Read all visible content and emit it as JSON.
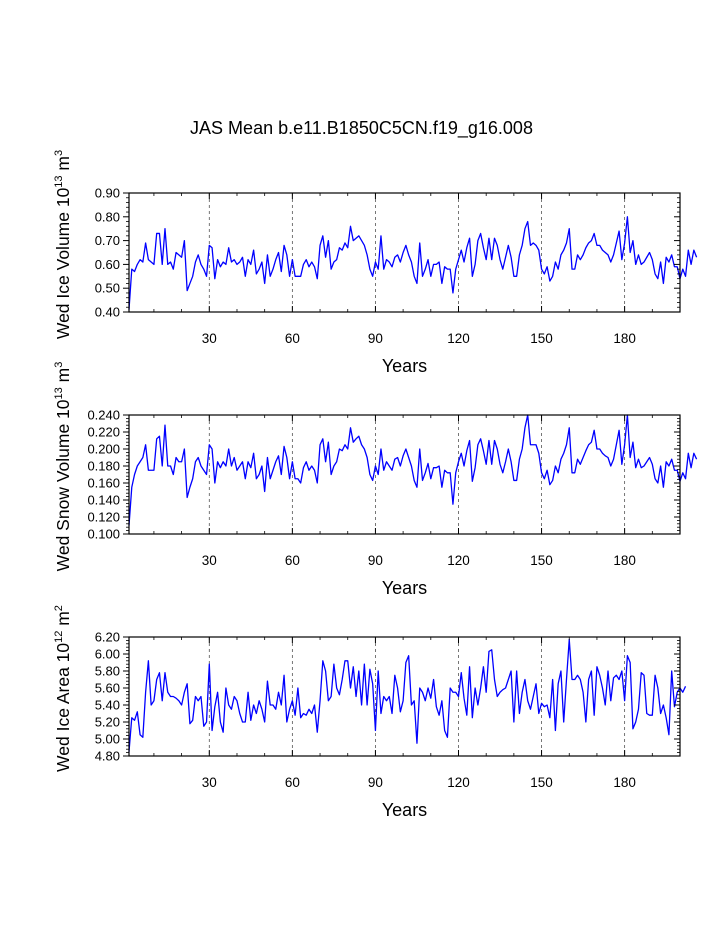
{
  "figure": {
    "title": "JAS Mean b.e11.B1850C5CN.f19_g16.008"
  },
  "chart_data": [
    {
      "type": "line",
      "title": "",
      "xlabel": "Years",
      "ylabel": "Wed Ice Volume 10",
      "ylabel_exp": "13",
      "ylabel_unit": "m",
      "ylabel_unit_exp": "3",
      "xlim": [
        1,
        200
      ],
      "ylim": [
        0.4,
        0.9
      ],
      "xticks": [
        30,
        60,
        90,
        120,
        150,
        180
      ],
      "xtick_labels": [
        "30",
        "60",
        "90",
        "120",
        "150",
        "180"
      ],
      "yticks": [
        0.4,
        0.5,
        0.6,
        0.7,
        0.8,
        0.9
      ],
      "ytick_labels": [
        "0.40",
        "0.50",
        "0.60",
        "0.70",
        "0.80",
        "0.90"
      ],
      "line_color": "#0000ff",
      "series": [
        {
          "name": "Wed Ice Volume",
          "values": [
            0.41,
            0.58,
            0.57,
            0.6,
            0.62,
            0.61,
            0.69,
            0.62,
            0.61,
            0.6,
            0.73,
            0.73,
            0.6,
            0.75,
            0.6,
            0.61,
            0.58,
            0.65,
            0.64,
            0.63,
            0.7,
            0.49,
            0.52,
            0.55,
            0.61,
            0.64,
            0.6,
            0.58,
            0.55,
            0.68,
            0.67,
            0.54,
            0.62,
            0.59,
            0.61,
            0.6,
            0.67,
            0.61,
            0.62,
            0.6,
            0.61,
            0.63,
            0.55,
            0.62,
            0.6,
            0.66,
            0.56,
            0.58,
            0.61,
            0.52,
            0.64,
            0.55,
            0.58,
            0.62,
            0.65,
            0.57,
            0.68,
            0.64,
            0.55,
            0.62,
            0.55,
            0.55,
            0.55,
            0.6,
            0.62,
            0.59,
            0.61,
            0.59,
            0.54,
            0.68,
            0.72,
            0.63,
            0.7,
            0.58,
            0.61,
            0.62,
            0.67,
            0.66,
            0.69,
            0.67,
            0.76,
            0.7,
            0.71,
            0.72,
            0.7,
            0.68,
            0.64,
            0.58,
            0.55,
            0.61,
            0.58,
            0.72,
            0.58,
            0.62,
            0.61,
            0.59,
            0.63,
            0.64,
            0.61,
            0.65,
            0.68,
            0.64,
            0.61,
            0.55,
            0.52,
            0.69,
            0.55,
            0.58,
            0.62,
            0.55,
            0.6,
            0.6,
            0.61,
            0.52,
            0.59,
            0.58,
            0.58,
            0.48,
            0.58,
            0.62,
            0.66,
            0.61,
            0.67,
            0.71,
            0.55,
            0.6,
            0.7,
            0.73,
            0.67,
            0.62,
            0.71,
            0.62,
            0.71,
            0.68,
            0.62,
            0.58,
            0.63,
            0.68,
            0.63,
            0.55,
            0.55,
            0.64,
            0.68,
            0.75,
            0.78,
            0.68,
            0.69,
            0.68,
            0.66,
            0.58,
            0.56,
            0.59,
            0.53,
            0.55,
            0.61,
            0.58,
            0.64,
            0.66,
            0.69,
            0.75,
            0.58,
            0.58,
            0.64,
            0.62,
            0.64,
            0.67,
            0.69,
            0.7,
            0.73,
            0.68,
            0.68,
            0.66,
            0.65,
            0.64,
            0.61,
            0.64,
            0.69,
            0.74,
            0.62,
            0.69,
            0.8,
            0.65,
            0.7,
            0.6,
            0.64,
            0.6,
            0.61,
            0.63,
            0.65,
            0.62,
            0.56,
            0.54,
            0.61,
            0.52,
            0.63,
            0.61,
            0.64,
            0.59,
            0.59,
            0.54,
            0.58,
            0.55,
            0.66,
            0.6,
            0.66,
            0.63
          ]
        }
      ]
    },
    {
      "type": "line",
      "title": "",
      "xlabel": "Years",
      "ylabel": "Wed Snow Volume 10",
      "ylabel_exp": "13",
      "ylabel_unit": "m",
      "ylabel_unit_exp": "3",
      "xlim": [
        1,
        200
      ],
      "ylim": [
        0.1,
        0.24
      ],
      "xticks": [
        30,
        60,
        90,
        120,
        150,
        180
      ],
      "xtick_labels": [
        "30",
        "60",
        "90",
        "120",
        "150",
        "180"
      ],
      "yticks": [
        0.1,
        0.12,
        0.14,
        0.16,
        0.18,
        0.2,
        0.22,
        0.24
      ],
      "ytick_labels": [
        "0.100",
        "0.120",
        "0.140",
        "0.160",
        "0.180",
        "0.200",
        "0.220",
        "0.240"
      ],
      "line_color": "#0000ff",
      "series": [
        {
          "name": "Wed Snow Volume",
          "values": [
            0.11,
            0.155,
            0.17,
            0.18,
            0.185,
            0.19,
            0.205,
            0.175,
            0.175,
            0.175,
            0.212,
            0.215,
            0.18,
            0.228,
            0.18,
            0.18,
            0.17,
            0.19,
            0.185,
            0.185,
            0.2,
            0.143,
            0.155,
            0.165,
            0.185,
            0.19,
            0.18,
            0.175,
            0.17,
            0.205,
            0.2,
            0.16,
            0.185,
            0.178,
            0.185,
            0.18,
            0.2,
            0.18,
            0.19,
            0.175,
            0.18,
            0.185,
            0.165,
            0.185,
            0.178,
            0.195,
            0.165,
            0.17,
            0.18,
            0.15,
            0.19,
            0.165,
            0.175,
            0.185,
            0.192,
            0.17,
            0.203,
            0.19,
            0.165,
            0.185,
            0.165,
            0.165,
            0.16,
            0.178,
            0.185,
            0.175,
            0.18,
            0.175,
            0.16,
            0.205,
            0.212,
            0.185,
            0.208,
            0.17,
            0.18,
            0.185,
            0.2,
            0.198,
            0.205,
            0.2,
            0.225,
            0.208,
            0.212,
            0.215,
            0.205,
            0.2,
            0.19,
            0.17,
            0.163,
            0.18,
            0.17,
            0.2,
            0.175,
            0.185,
            0.18,
            0.175,
            0.188,
            0.19,
            0.18,
            0.192,
            0.2,
            0.19,
            0.18,
            0.163,
            0.155,
            0.2,
            0.163,
            0.172,
            0.183,
            0.165,
            0.178,
            0.178,
            0.18,
            0.155,
            0.175,
            0.172,
            0.172,
            0.135,
            0.172,
            0.185,
            0.195,
            0.18,
            0.198,
            0.21,
            0.162,
            0.178,
            0.205,
            0.212,
            0.198,
            0.182,
            0.21,
            0.182,
            0.21,
            0.2,
            0.182,
            0.172,
            0.185,
            0.2,
            0.185,
            0.163,
            0.163,
            0.188,
            0.2,
            0.225,
            0.24,
            0.205,
            0.205,
            0.205,
            0.195,
            0.172,
            0.165,
            0.175,
            0.158,
            0.163,
            0.18,
            0.172,
            0.188,
            0.195,
            0.205,
            0.225,
            0.172,
            0.172,
            0.188,
            0.182,
            0.19,
            0.198,
            0.205,
            0.208,
            0.222,
            0.2,
            0.2,
            0.195,
            0.192,
            0.19,
            0.18,
            0.188,
            0.205,
            0.222,
            0.182,
            0.205,
            0.24,
            0.19,
            0.208,
            0.178,
            0.188,
            0.178,
            0.18,
            0.185,
            0.19,
            0.182,
            0.165,
            0.16,
            0.18,
            0.155,
            0.185,
            0.18,
            0.188,
            0.175,
            0.175,
            0.162,
            0.172,
            0.165,
            0.195,
            0.178,
            0.195,
            0.188
          ]
        }
      ]
    },
    {
      "type": "line",
      "title": "",
      "xlabel": "Years",
      "ylabel": "Wed Ice Area 10",
      "ylabel_exp": "12",
      "ylabel_unit": "m",
      "ylabel_unit_exp": "2",
      "xlim": [
        1,
        200
      ],
      "ylim": [
        4.8,
        6.2
      ],
      "xticks": [
        30,
        60,
        90,
        120,
        150,
        180
      ],
      "xtick_labels": [
        "30",
        "60",
        "90",
        "120",
        "150",
        "180"
      ],
      "yticks": [
        4.8,
        5.0,
        5.2,
        5.4,
        5.6,
        5.8,
        6.0,
        6.2
      ],
      "ytick_labels": [
        "4.80",
        "5.00",
        "5.20",
        "5.40",
        "5.60",
        "5.80",
        "6.00",
        "6.20"
      ],
      "line_color": "#0000ff",
      "series": [
        {
          "name": "Wed Ice Area",
          "values": [
            4.85,
            5.25,
            5.22,
            5.32,
            5.05,
            5.02,
            5.55,
            5.92,
            5.4,
            5.45,
            5.7,
            5.78,
            5.45,
            5.78,
            5.55,
            5.5,
            5.5,
            5.48,
            5.45,
            5.4,
            5.55,
            5.65,
            5.18,
            5.22,
            5.5,
            5.45,
            5.5,
            5.15,
            5.2,
            5.88,
            5.1,
            5.38,
            5.55,
            5.2,
            5.08,
            5.6,
            5.4,
            5.35,
            5.5,
            5.45,
            5.3,
            5.2,
            5.2,
            5.55,
            5.22,
            5.4,
            5.3,
            5.45,
            5.35,
            5.2,
            5.68,
            5.4,
            5.4,
            5.35,
            5.55,
            5.4,
            5.75,
            5.2,
            5.35,
            5.45,
            5.28,
            5.6,
            5.25,
            5.3,
            5.28,
            5.35,
            5.3,
            5.4,
            5.08,
            5.45,
            5.92,
            5.8,
            5.45,
            5.5,
            5.88,
            5.6,
            5.52,
            5.7,
            5.92,
            5.92,
            5.6,
            5.85,
            5.5,
            5.8,
            5.4,
            5.88,
            5.4,
            5.82,
            5.65,
            5.1,
            5.8,
            5.3,
            5.5,
            5.45,
            5.5,
            5.3,
            5.75,
            5.6,
            5.32,
            5.45,
            5.9,
            5.98,
            5.4,
            5.45,
            4.95,
            5.6,
            5.55,
            5.45,
            5.6,
            5.48,
            5.7,
            5.38,
            5.28,
            5.45,
            5.1,
            5.02,
            5.6,
            5.55,
            5.55,
            5.5,
            5.78,
            5.48,
            5.28,
            5.85,
            5.25,
            5.6,
            5.4,
            5.6,
            5.85,
            5.55,
            6.03,
            6.05,
            5.7,
            5.5,
            5.55,
            5.58,
            5.6,
            5.7,
            5.8,
            5.2,
            5.8,
            5.3,
            5.55,
            5.7,
            5.45,
            5.35,
            5.5,
            5.65,
            5.3,
            5.42,
            5.38,
            5.4,
            5.25,
            5.7,
            5.1,
            5.65,
            5.8,
            5.2,
            5.7,
            6.17,
            5.7,
            5.7,
            5.75,
            5.7,
            5.55,
            5.2,
            5.7,
            5.8,
            5.28,
            5.85,
            5.75,
            5.6,
            5.4,
            5.8,
            5.45,
            5.72,
            5.75,
            5.7,
            5.8,
            5.45,
            5.98,
            5.9,
            5.12,
            5.2,
            5.35,
            5.78,
            5.75,
            5.3,
            5.28,
            5.28,
            5.75,
            5.6,
            5.3,
            5.4,
            5.25,
            5.05,
            5.8,
            5.38,
            5.55,
            5.6,
            5.55,
            5.62
          ]
        }
      ]
    }
  ]
}
